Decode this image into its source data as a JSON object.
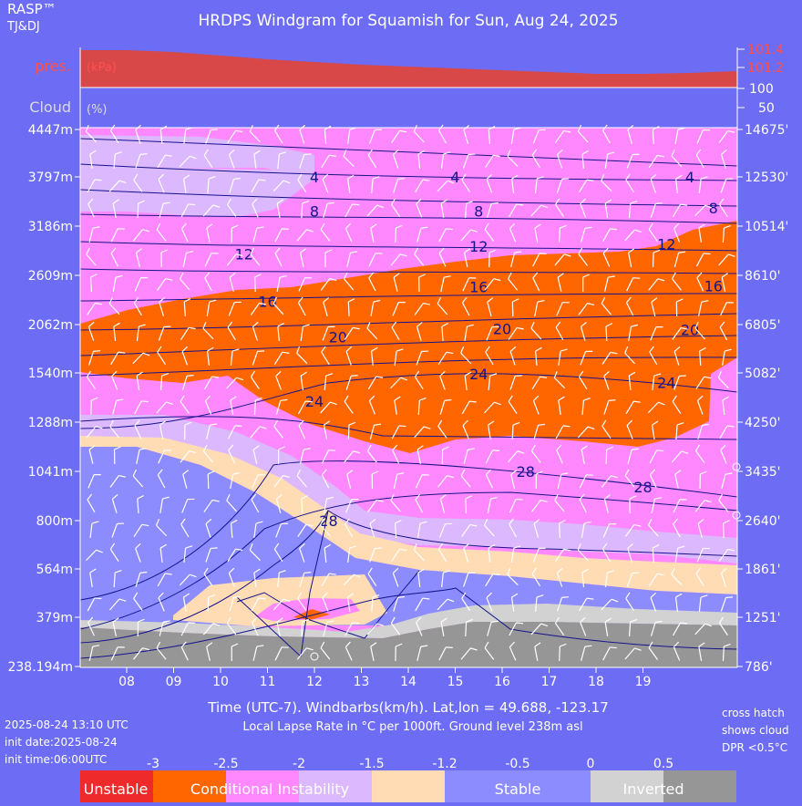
{
  "chart_data": {
    "type": "area",
    "title": "HRDPS Windgram for Squamish for Sun, Aug 24, 2025",
    "brand": "RASP™",
    "brand_sub": "TJ&DJ",
    "xlabel": "Time (UTC-7). Windbarbs(km/h). Lat,lon = 49.688, -123.17",
    "subtitle": "Local Lapse Rate in °C per 1000ft.   Ground level 238m asl",
    "hours": [
      "08",
      "09",
      "10",
      "11",
      "12",
      "13",
      "14",
      "15",
      "16",
      "17",
      "18",
      "19"
    ],
    "altitudes_m": [
      4447,
      3797,
      3186,
      2609,
      2062,
      1540,
      1288,
      1041,
      800,
      564,
      379,
      238.194
    ],
    "altitude_labels_m": [
      "4447m",
      "3797m",
      "3186m",
      "2609m",
      "2062m",
      "1540m",
      "1288m",
      "1041m",
      "800m",
      "564m",
      "379m",
      "238.194m"
    ],
    "altitude_labels_ft": [
      "14675'",
      "12530'",
      "10514'",
      "8610'",
      "6805'",
      "5082'",
      "4250'",
      "3435'",
      "2640'",
      "1861'",
      "1251'",
      "786'"
    ],
    "pressure_panel": {
      "label": "pres.",
      "unit": "(kPa)",
      "ticks": [
        "101.4",
        "101.2"
      ],
      "ylim": [
        101.0,
        101.5
      ],
      "x_hours": [
        7,
        8,
        9,
        10,
        11,
        12,
        13,
        14,
        15,
        16,
        17,
        18,
        19,
        20,
        21
      ],
      "values": [
        101.39,
        101.39,
        101.37,
        101.33,
        101.29,
        101.26,
        101.23,
        101.21,
        101.19,
        101.17,
        101.15,
        101.13,
        101.13,
        101.14,
        101.16
      ]
    },
    "cloud_panel": {
      "label": "Cloud",
      "unit": "(%)",
      "ticks": [
        "100",
        "50"
      ],
      "values": []
    },
    "contour_labels": [
      {
        "text": "4",
        "hour": 12.0,
        "alt": 3800
      },
      {
        "text": "4",
        "hour": 15.0,
        "alt": 3800
      },
      {
        "text": "4",
        "hour": 20.0,
        "alt": 3800
      },
      {
        "text": "8",
        "hour": 12.0,
        "alt": 3370
      },
      {
        "text": "8",
        "hour": 15.5,
        "alt": 3370
      },
      {
        "text": "8",
        "hour": 20.5,
        "alt": 3410
      },
      {
        "text": "12",
        "hour": 10.5,
        "alt": 2860
      },
      {
        "text": "12",
        "hour": 15.5,
        "alt": 2950
      },
      {
        "text": "12",
        "hour": 19.5,
        "alt": 2980
      },
      {
        "text": "16",
        "hour": 11.0,
        "alt": 2320
      },
      {
        "text": "16",
        "hour": 15.5,
        "alt": 2480
      },
      {
        "text": "16",
        "hour": 20.5,
        "alt": 2490
      },
      {
        "text": "20",
        "hour": 12.5,
        "alt": 1930
      },
      {
        "text": "20",
        "hour": 16.0,
        "alt": 2020
      },
      {
        "text": "20",
        "hour": 20.0,
        "alt": 2010
      },
      {
        "text": "24",
        "hour": 12.0,
        "alt": 1395
      },
      {
        "text": "24",
        "hour": 15.5,
        "alt": 1535
      },
      {
        "text": "24",
        "hour": 19.5,
        "alt": 1490
      },
      {
        "text": "28",
        "hour": 16.5,
        "alt": 1040
      },
      {
        "text": "28",
        "hour": 19.0,
        "alt": 965
      },
      {
        "text": "28",
        "hour": 12.3,
        "alt": 800
      }
    ],
    "legend": {
      "ticks": [
        "-3",
        "-2.5",
        "-2",
        "-1.5",
        "-1.2",
        "-0.5",
        "0",
        "0.5"
      ],
      "categories": [
        {
          "label": "Unstable",
          "color": "#ee2a2a"
        },
        {
          "label": "Conditional Instability",
          "color": "#ff6600"
        },
        {
          "label": "",
          "color": "#ff88ff"
        },
        {
          "label": "",
          "color": "#dcb8ff"
        },
        {
          "label": "",
          "color": "#ffdcb4"
        },
        {
          "label": "Stable",
          "color": "#8c8cff"
        },
        {
          "label": "",
          "color": "#d2d2d2"
        },
        {
          "label": "Inverted",
          "color": "#969696"
        }
      ]
    },
    "notes": {
      "valid": "2025-08-24 13:10 UTC",
      "init_date": "init date:2025-08-24",
      "init_time": "init time:06:00UTC",
      "cross_hatch": [
        "cross hatch",
        "shows cloud",
        "DPR <0.5°C"
      ]
    },
    "colors": {
      "background": "#6c6cf4",
      "pressure_fill": "#d84848",
      "magenta": "#ff88ff",
      "orange": "#ff6600",
      "lavender": "#dcb8ff",
      "peach": "#ffdcb4",
      "stable": "#8c8cff",
      "light_gray": "#d2d2d2",
      "dark_gray": "#969696",
      "label_red": "#ff5050",
      "contour_label": "#14148c"
    }
  }
}
